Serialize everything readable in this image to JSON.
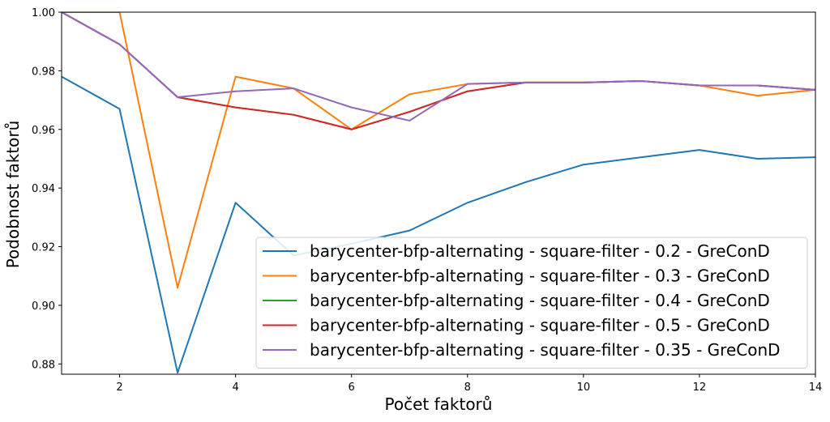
{
  "chart_data": {
    "type": "line",
    "xlabel": "Počet faktorů",
    "ylabel": "Podobnost faktorů",
    "xlim": [
      1,
      14
    ],
    "ylim": [
      0.8765,
      1.0
    ],
    "xticks": [
      2,
      4,
      6,
      8,
      10,
      12,
      14
    ],
    "yticks": [
      0.88,
      0.9,
      0.92,
      0.94,
      0.96,
      0.98,
      1.0
    ],
    "xtick_labels": [
      "2",
      "4",
      "6",
      "8",
      "10",
      "12",
      "14"
    ],
    "ytick_labels": [
      "0.88",
      "0.90",
      "0.92",
      "0.94",
      "0.96",
      "0.98",
      "1.00"
    ],
    "grid": false,
    "legend_position": "lower-right",
    "x": [
      1,
      2,
      3,
      4,
      5,
      6,
      7,
      8,
      9,
      10,
      11,
      12,
      13,
      14
    ],
    "series": [
      {
        "name": "barycenter-bfp-alternating - square-filter - 0.2 - GreConD",
        "color": "#1f77b4",
        "values": [
          0.978,
          0.967,
          0.877,
          0.935,
          0.917,
          0.921,
          0.9255,
          0.935,
          0.942,
          0.948,
          0.9505,
          0.953,
          0.95,
          0.9505
        ]
      },
      {
        "name": "barycenter-bfp-alternating - square-filter - 0.3 - GreConD",
        "color": "#ff7f0e",
        "values": [
          1.0,
          1.0,
          0.906,
          0.978,
          0.974,
          0.96,
          0.972,
          0.9755,
          0.976,
          0.976,
          0.9765,
          0.975,
          0.9715,
          0.9735
        ]
      },
      {
        "name": "barycenter-bfp-alternating - square-filter - 0.4 - GreConD",
        "color": "#2ca02c",
        "values": [
          1.0,
          0.989,
          0.971,
          0.9675,
          0.965,
          0.96,
          0.966,
          0.973,
          0.976,
          0.976,
          0.9765,
          0.975,
          0.975,
          0.9735
        ]
      },
      {
        "name": "barycenter-bfp-alternating - square-filter - 0.5 - GreConD",
        "color": "#d62728",
        "values": [
          1.0,
          0.989,
          0.971,
          0.9675,
          0.965,
          0.96,
          0.966,
          0.973,
          0.976,
          0.976,
          0.9765,
          0.975,
          0.975,
          0.9735
        ]
      },
      {
        "name": "barycenter-bfp-alternating - square-filter - 0.35 - GreConD",
        "color": "#9467bd",
        "values": [
          1.0,
          0.989,
          0.971,
          0.973,
          0.974,
          0.9675,
          0.963,
          0.9755,
          0.976,
          0.976,
          0.9765,
          0.975,
          0.975,
          0.9735
        ]
      }
    ]
  }
}
